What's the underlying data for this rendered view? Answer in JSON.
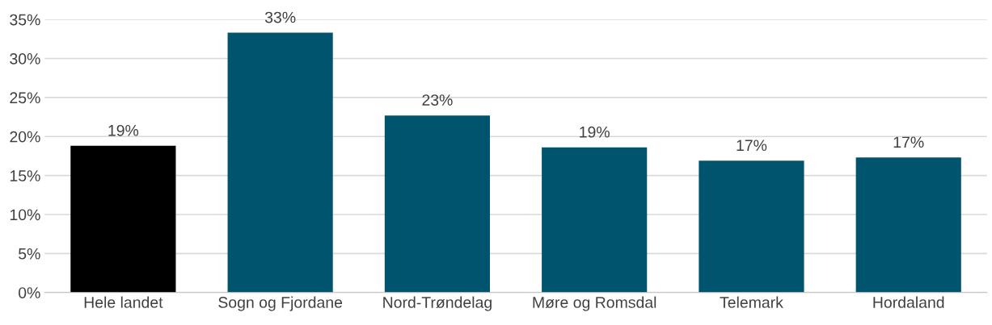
{
  "chart_data": {
    "type": "bar",
    "categories": [
      "Hele landet",
      "Sogn og Fjordane",
      "Nord-Trøndelag",
      "Møre og Romsdal",
      "Telemark",
      "Hordaland"
    ],
    "values": [
      18.8,
      33.3,
      22.7,
      18.6,
      16.9,
      17.3
    ],
    "colors": [
      "#000000",
      "#00546e",
      "#00546e",
      "#00546e",
      "#00546e",
      "#00546e"
    ],
    "value_labels": [
      "19%",
      "33%",
      "23%",
      "19%",
      "17%",
      "17%"
    ],
    "ylim": [
      0,
      35
    ],
    "yticks": [
      {
        "value": 0,
        "label": "0%"
      },
      {
        "value": 5,
        "label": "5%"
      },
      {
        "value": 10,
        "label": "10%"
      },
      {
        "value": 15,
        "label": "15%"
      },
      {
        "value": 20,
        "label": "20%"
      },
      {
        "value": 25,
        "label": "25%"
      },
      {
        "value": 30,
        "label": "30%"
      },
      {
        "value": 35,
        "label": "35%"
      }
    ],
    "grid": "y",
    "legend": false
  }
}
